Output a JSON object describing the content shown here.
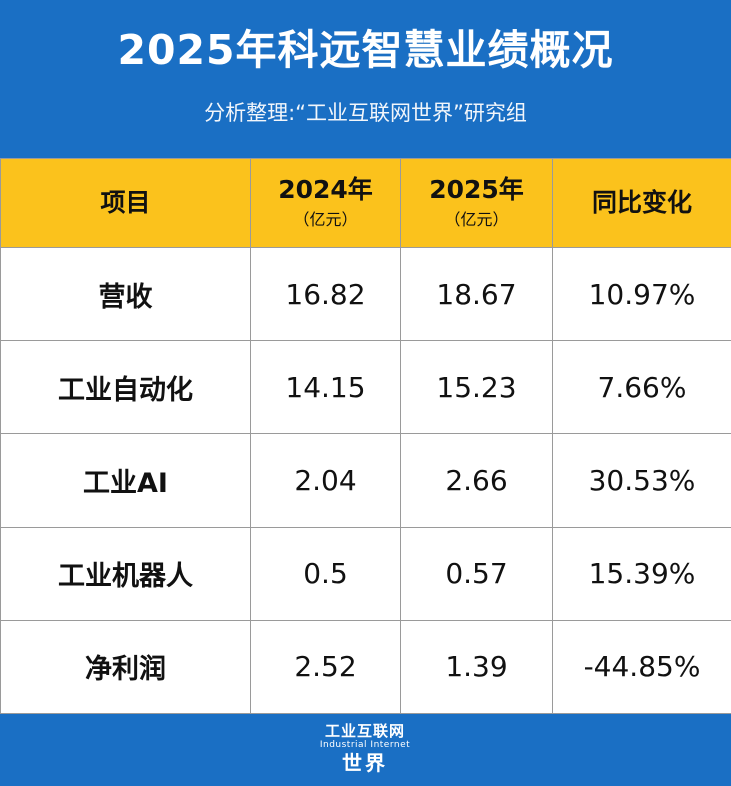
{
  "header": {
    "title": "2025年科远智慧业绩概况",
    "subtitle": "分析整理:“工业互联网世界”研究组"
  },
  "table": {
    "columns": [
      {
        "label": "项目",
        "unit": ""
      },
      {
        "label": "2024年",
        "unit": "（亿元）"
      },
      {
        "label": "2025年",
        "unit": "（亿元）"
      },
      {
        "label": "同比变化",
        "unit": ""
      }
    ],
    "rows": [
      {
        "item": "营收",
        "y2024": "16.82",
        "y2025": "18.67",
        "change": "10.97%"
      },
      {
        "item": "工业自动化",
        "y2024": "14.15",
        "y2025": "15.23",
        "change": "7.66%"
      },
      {
        "item": "工业AI",
        "y2024": "2.04",
        "y2025": "2.66",
        "change": "30.53%"
      },
      {
        "item": "工业机器人",
        "y2024": "0.5",
        "y2025": "0.57",
        "change": "15.39%"
      },
      {
        "item": "净利润",
        "y2024": "2.52",
        "y2025": "1.39",
        "change": "-44.85%"
      }
    ]
  },
  "footer": {
    "logo_top": "工业互联网",
    "logo_en": "Industrial Internet",
    "logo_bottom": "世界"
  },
  "colors": {
    "brand_blue": "#1a6fc4",
    "header_yellow": "#fbc21c"
  }
}
